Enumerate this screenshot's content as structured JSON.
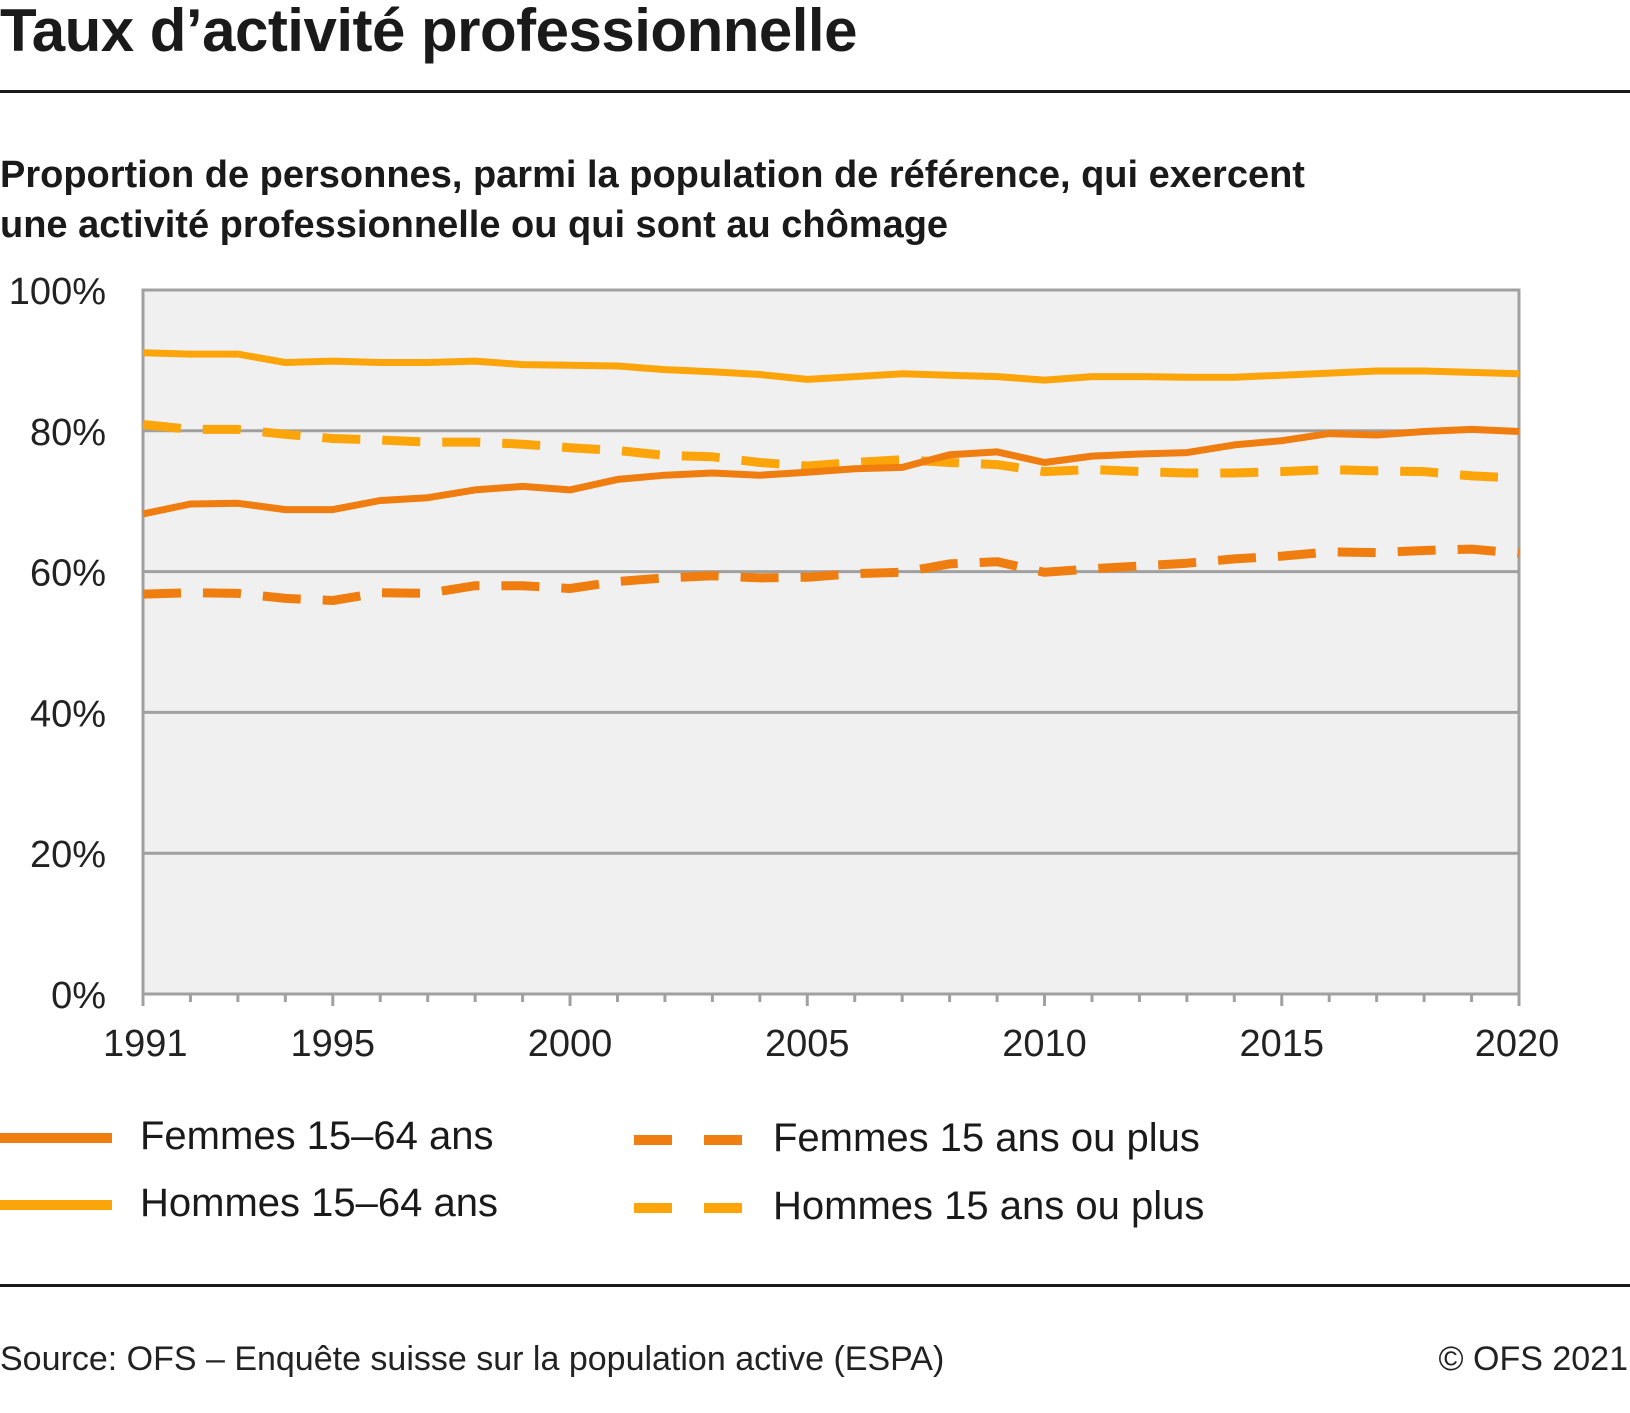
{
  "header": {
    "title": "Taux d’activité professionnelle",
    "subtitle_line1": "Proportion de personnes, parmi la population de référence, qui exercent",
    "subtitle_line2": "une activité professionnelle ou qui sont au chômage"
  },
  "footer": {
    "source": "Source: OFS – Enquête suisse sur la population active (ESPA)",
    "copyright": "© OFS 2021"
  },
  "colors": {
    "femmes": "#f07d0f",
    "hommes": "#fca50a",
    "plot_bg": "#f0f0f0",
    "grid": "#a0a0a0"
  },
  "chart_data": {
    "type": "line",
    "title": "",
    "xlabel": "",
    "ylabel": "",
    "x": [
      1991,
      1992,
      1993,
      1994,
      1995,
      1996,
      1997,
      1998,
      1999,
      2000,
      2001,
      2002,
      2003,
      2004,
      2005,
      2006,
      2007,
      2008,
      2009,
      2010,
      2011,
      2012,
      2013,
      2014,
      2015,
      2016,
      2017,
      2018,
      2019,
      2020
    ],
    "xticks": [
      1991,
      1995,
      2000,
      2005,
      2010,
      2015,
      2020
    ],
    "xlim": [
      1991,
      2020
    ],
    "ylim": [
      0,
      100
    ],
    "yticks": [
      0,
      20,
      40,
      60,
      80,
      100
    ],
    "ytick_labels": [
      "0%",
      "20%",
      "40%",
      "60%",
      "80%",
      "100%"
    ],
    "grid": true,
    "legend_position": "bottom",
    "series": [
      {
        "name": "Femmes 15–64 ans",
        "color": "#f07d0f",
        "style": "solid",
        "values": [
          68.2,
          69.6,
          69.7,
          68.8,
          68.8,
          70.1,
          70.5,
          71.6,
          72.1,
          71.6,
          73.1,
          73.7,
          74.0,
          73.7,
          74.1,
          74.6,
          74.8,
          76.6,
          77.0,
          75.5,
          76.4,
          76.7,
          76.9,
          78.0,
          78.6,
          79.6,
          79.4,
          79.9,
          80.2,
          79.9
        ]
      },
      {
        "name": "Hommes 15–64 ans",
        "color": "#fca50a",
        "style": "solid",
        "values": [
          91.1,
          90.9,
          90.9,
          89.7,
          89.9,
          89.7,
          89.7,
          89.9,
          89.4,
          89.3,
          89.2,
          88.7,
          88.4,
          88.0,
          87.3,
          87.7,
          88.1,
          87.9,
          87.7,
          87.2,
          87.7,
          87.7,
          87.6,
          87.6,
          87.9,
          88.2,
          88.5,
          88.5,
          88.3,
          88.1
        ]
      },
      {
        "name": "Femmes 15 ans ou plus",
        "color": "#f07d0f",
        "style": "dashed",
        "values": [
          56.8,
          57.0,
          56.9,
          56.2,
          55.9,
          57.0,
          56.9,
          58.0,
          58.0,
          57.6,
          58.6,
          59.1,
          59.4,
          59.1,
          59.2,
          59.7,
          59.9,
          61.1,
          61.4,
          59.9,
          60.4,
          60.8,
          61.2,
          61.8,
          62.2,
          62.8,
          62.7,
          63.0,
          63.2,
          62.6
        ]
      },
      {
        "name": "Hommes 15 ans ou plus",
        "color": "#fca50a",
        "style": "dashed",
        "values": [
          80.9,
          80.2,
          80.2,
          79.5,
          78.9,
          78.7,
          78.4,
          78.4,
          78.1,
          77.6,
          77.2,
          76.5,
          76.3,
          75.5,
          75.0,
          75.5,
          75.9,
          75.5,
          75.2,
          74.2,
          74.5,
          74.2,
          74.0,
          74.0,
          74.2,
          74.5,
          74.3,
          74.2,
          73.6,
          73.3
        ]
      }
    ]
  }
}
